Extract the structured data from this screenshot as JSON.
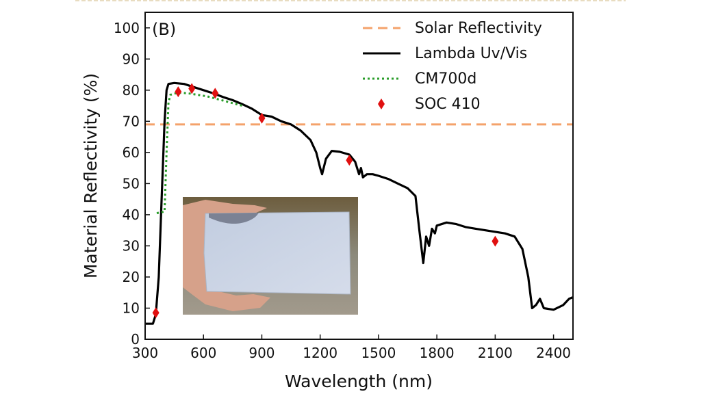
{
  "chart_data": {
    "type": "line",
    "panel_label": "(B)",
    "xlabel": "Wavelength (nm)",
    "ylabel": "Material Reflectivity (%)",
    "xlim": [
      300,
      2500
    ],
    "ylim": [
      0,
      105
    ],
    "x_ticks": [
      300,
      600,
      900,
      1200,
      1500,
      1800,
      2100,
      2400
    ],
    "y_ticks": [
      0,
      10,
      20,
      30,
      40,
      50,
      60,
      70,
      80,
      90,
      100
    ],
    "grid": false,
    "legend_position": "top-right",
    "series": [
      {
        "name": "Solar Reflectivity",
        "style": "dashed",
        "color": "#f4a26b",
        "points": [
          [
            300,
            69
          ],
          [
            2500,
            69
          ]
        ]
      },
      {
        "name": "Lambda Uv/Vis",
        "style": "solid",
        "color": "#000000",
        "points": [
          [
            300,
            5
          ],
          [
            340,
            5
          ],
          [
            355,
            8
          ],
          [
            370,
            20
          ],
          [
            385,
            45
          ],
          [
            400,
            70
          ],
          [
            410,
            80
          ],
          [
            420,
            82
          ],
          [
            450,
            82.3
          ],
          [
            500,
            82
          ],
          [
            550,
            81
          ],
          [
            600,
            80
          ],
          [
            650,
            79
          ],
          [
            700,
            77.8
          ],
          [
            750,
            76.8
          ],
          [
            800,
            75.5
          ],
          [
            850,
            74
          ],
          [
            900,
            72
          ],
          [
            950,
            71.5
          ],
          [
            1000,
            70
          ],
          [
            1050,
            69
          ],
          [
            1100,
            67
          ],
          [
            1150,
            64
          ],
          [
            1180,
            60
          ],
          [
            1200,
            55
          ],
          [
            1210,
            53
          ],
          [
            1230,
            58
          ],
          [
            1260,
            60.5
          ],
          [
            1300,
            60.2
          ],
          [
            1350,
            59.3
          ],
          [
            1380,
            57
          ],
          [
            1400,
            53
          ],
          [
            1410,
            55
          ],
          [
            1420,
            52
          ],
          [
            1440,
            53
          ],
          [
            1470,
            53
          ],
          [
            1500,
            52.5
          ],
          [
            1550,
            51.5
          ],
          [
            1600,
            50
          ],
          [
            1650,
            48.5
          ],
          [
            1690,
            46
          ],
          [
            1710,
            35
          ],
          [
            1730,
            24.5
          ],
          [
            1745,
            33
          ],
          [
            1760,
            30
          ],
          [
            1775,
            35.5
          ],
          [
            1790,
            34
          ],
          [
            1800,
            36.5
          ],
          [
            1850,
            37.5
          ],
          [
            1900,
            37
          ],
          [
            1950,
            36
          ],
          [
            2000,
            35.5
          ],
          [
            2050,
            35
          ],
          [
            2100,
            34.5
          ],
          [
            2150,
            34
          ],
          [
            2200,
            33
          ],
          [
            2240,
            29
          ],
          [
            2270,
            20
          ],
          [
            2290,
            10
          ],
          [
            2310,
            11
          ],
          [
            2330,
            13
          ],
          [
            2350,
            10
          ],
          [
            2400,
            9.5
          ],
          [
            2450,
            11
          ],
          [
            2480,
            13
          ],
          [
            2500,
            13.5
          ]
        ]
      },
      {
        "name": "CM700d",
        "style": "dotted",
        "color": "#2a9d2a",
        "points": [
          [
            360,
            40.5
          ],
          [
            400,
            41
          ],
          [
            410,
            60
          ],
          [
            420,
            76
          ],
          [
            430,
            78.5
          ],
          [
            470,
            79.2
          ],
          [
            520,
            79
          ],
          [
            570,
            78.5
          ],
          [
            620,
            78
          ],
          [
            680,
            77
          ],
          [
            740,
            76
          ],
          [
            800,
            75
          ]
        ]
      },
      {
        "name": "SOC 410",
        "style": "markers",
        "marker": "diamond",
        "color": "#e01010",
        "points": [
          [
            355,
            8.5
          ],
          [
            470,
            79.5
          ],
          [
            540,
            80.5
          ],
          [
            660,
            79
          ],
          [
            900,
            71
          ],
          [
            1350,
            57.5
          ],
          [
            2100,
            31.5
          ]
        ]
      }
    ]
  },
  "inset_photo": {
    "description_name": "hand-holding-coated-panel-photo",
    "colors": {
      "background_top": "#6b5a3c",
      "background_bottom": "#8a8478",
      "panel": "#c9d3e3",
      "skin": "#d9a48e"
    }
  },
  "styles": {
    "axis_color": "#111111",
    "top_rule_color": "#e8dcc0"
  }
}
